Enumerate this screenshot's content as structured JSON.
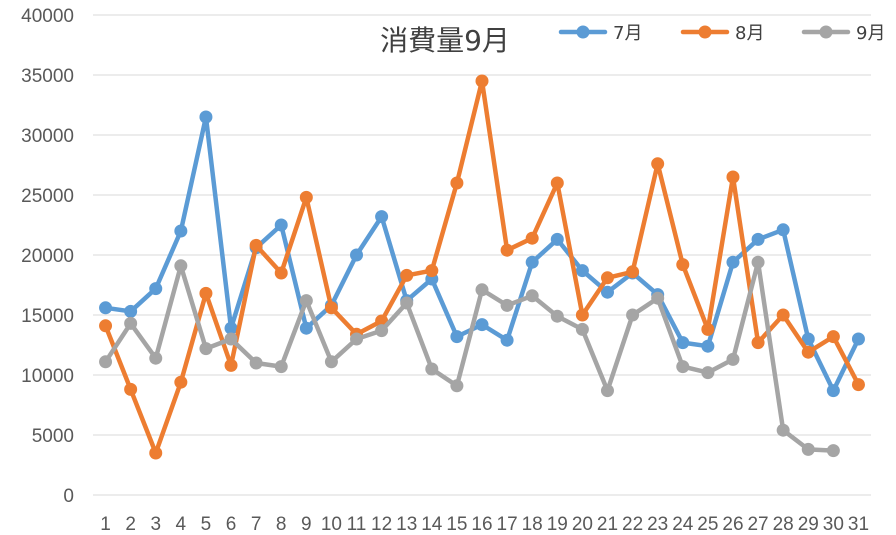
{
  "chart_data": {
    "type": "line",
    "title": "消費量9月",
    "xlabel": "",
    "ylabel": "",
    "ylim": [
      0,
      40000
    ],
    "yticks": [
      0,
      5000,
      10000,
      15000,
      20000,
      25000,
      30000,
      35000,
      40000
    ],
    "grid": true,
    "legend_position": "top-right",
    "categories": [
      "1",
      "2",
      "3",
      "4",
      "5",
      "6",
      "7",
      "8",
      "9",
      "10",
      "11",
      "12",
      "13",
      "14",
      "15",
      "16",
      "17",
      "18",
      "19",
      "20",
      "21",
      "22",
      "23",
      "24",
      "25",
      "26",
      "27",
      "28",
      "29",
      "30",
      "31"
    ],
    "series": [
      {
        "name": "7月",
        "color": "#5B9BD5",
        "values": [
          15600,
          15300,
          17200,
          22000,
          31500,
          13900,
          20600,
          22500,
          13900,
          15800,
          20000,
          23200,
          16200,
          18000,
          13200,
          14200,
          12900,
          19400,
          21300,
          18700,
          16900,
          18500,
          16700,
          12700,
          12400,
          19400,
          21300,
          22100,
          13000,
          8700,
          13000
        ]
      },
      {
        "name": "8月",
        "color": "#ED7D31",
        "values": [
          14100,
          8800,
          3500,
          9400,
          16800,
          10800,
          20800,
          18500,
          24800,
          15600,
          13400,
          14500,
          18300,
          18700,
          26000,
          34500,
          20400,
          21400,
          26000,
          15000,
          18100,
          18600,
          27600,
          19200,
          13800,
          26500,
          12700,
          15000,
          11900,
          13200,
          9200
        ]
      },
      {
        "name": "9月",
        "color": "#A5A5A5",
        "values": [
          11100,
          14300,
          11400,
          19100,
          12200,
          13000,
          11000,
          10700,
          16200,
          11100,
          13000,
          13700,
          16000,
          10500,
          9100,
          17100,
          15800,
          16600,
          14900,
          13800,
          8700,
          15000,
          16400,
          10700,
          10200,
          11300,
          19400,
          5400,
          3800,
          3700,
          null
        ]
      }
    ]
  }
}
